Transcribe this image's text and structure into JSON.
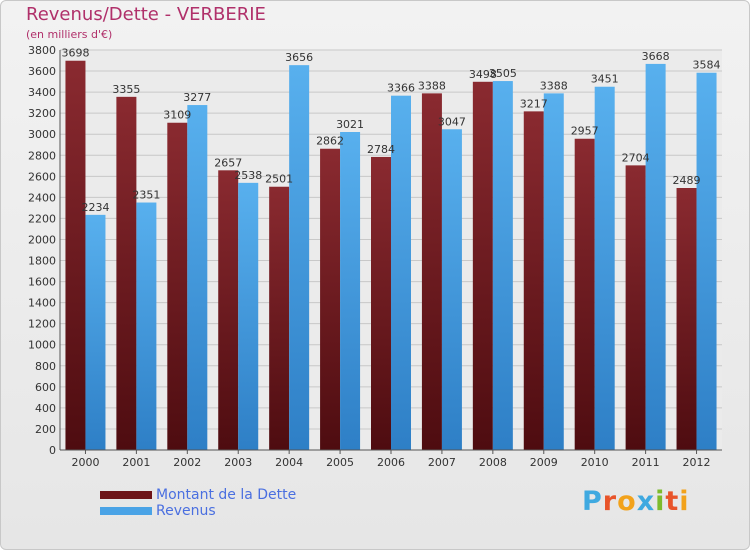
{
  "chart_data": {
    "type": "bar",
    "title": "Revenus/Dette - VERBERIE",
    "subtitle": "(en milliers d'€)",
    "categories": [
      "2000",
      "2001",
      "2002",
      "2003",
      "2004",
      "2005",
      "2006",
      "2007",
      "2008",
      "2009",
      "2010",
      "2011",
      "2012"
    ],
    "series": [
      {
        "name": "Montant de la Dette",
        "values": [
          3698,
          3355,
          3109,
          2657,
          2501,
          2862,
          2784,
          3388,
          3498,
          3217,
          2957,
          2704,
          2489
        ],
        "color": "#7a1f24"
      },
      {
        "name": "Revenus",
        "values": [
          2234,
          2351,
          3277,
          2538,
          3656,
          3021,
          3366,
          3047,
          3505,
          3388,
          3451,
          3668,
          3584
        ],
        "color": "#4aa3e6"
      }
    ],
    "ylim": [
      0,
      3800
    ],
    "yticks": [
      0,
      200,
      400,
      600,
      800,
      1000,
      1200,
      1400,
      1600,
      1800,
      2000,
      2200,
      2400,
      2600,
      2800,
      3000,
      3200,
      3400,
      3600,
      3800
    ],
    "grid": true,
    "legend_position": "bottom-left"
  },
  "logo": {
    "letters": [
      "P",
      "r",
      "o",
      "x",
      "i",
      "t",
      "i"
    ],
    "colors": [
      "#3fa9e0",
      "#e8542a",
      "#f2a21b",
      "#3fa9e0",
      "#7dbb2c",
      "#e8542a",
      "#f2a21b"
    ]
  }
}
